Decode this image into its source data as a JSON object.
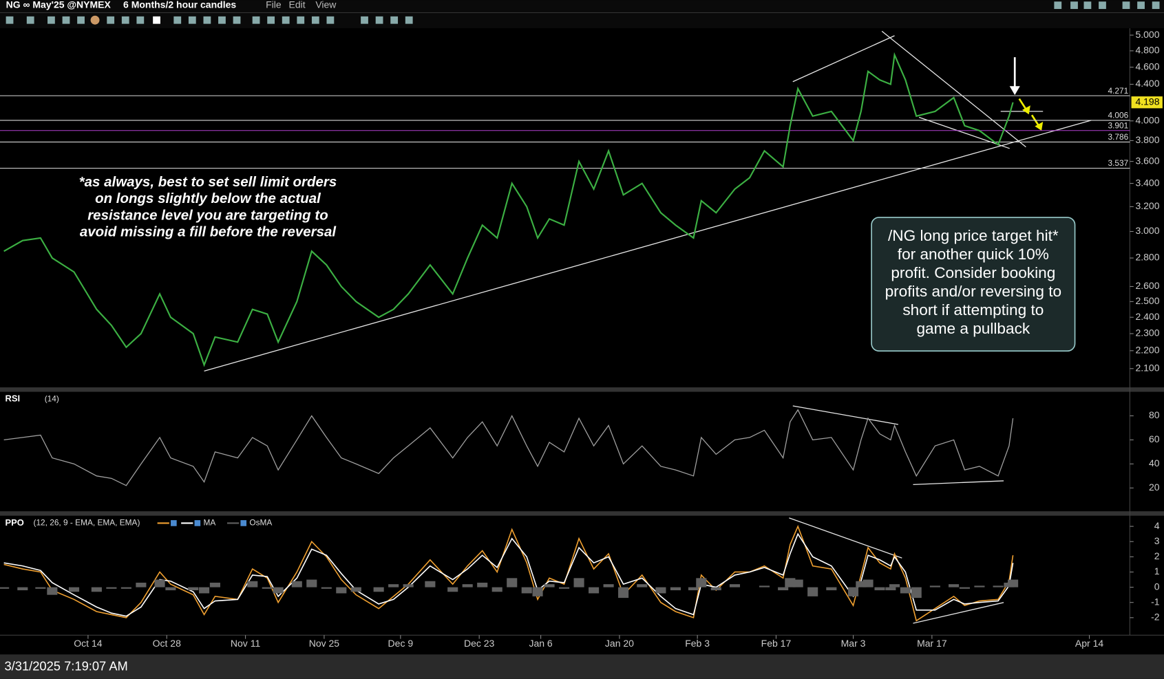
{
  "toolbar": {
    "symbol": "NG ∞ May'25 @NYMEX",
    "period": "6 Months/2 hour candles",
    "menu": [
      "File",
      "Edit",
      "View"
    ]
  },
  "chart_data": [
    {
      "type": "line",
      "color": "#3cb043",
      "log_scale": true,
      "note": [
        "*as always, best to set sell limit orders",
        "on longs slightly below the actual",
        "resistance level you are targeting to",
        "avoid missing a fill before the reversal"
      ],
      "callout": [
        "/NG long price target hit*",
        "for another quick 10%",
        "profit. Consider booking",
        "profits and/or reversing to",
        "short if attempting to",
        "game a pullback"
      ],
      "x": [
        0.5,
        2.9,
        5.2,
        6.7,
        9.5,
        12.4,
        14.3,
        16.2,
        18.1,
        20.5,
        21.9,
        24.8,
        26.2,
        27.6,
        30.5,
        32.4,
        34.3,
        35.7,
        38.1,
        40.0,
        41.9,
        43.8,
        45.7,
        48.6,
        50.5,
        52.4,
        55.2,
        58.1,
        60.0,
        61.9,
        63.8,
        65.7,
        67.6,
        69.0,
        70.5,
        72.4,
        74.3,
        76.2,
        78.1,
        80.0,
        82.4,
        84.8,
        86.7,
        89.0,
        90.0,
        91.9,
        94.3,
        96.2,
        98.1,
        100.5,
        101.4,
        102.4,
        104.3,
        106.7,
        109.5,
        110.5,
        111.4,
        112.9,
        114.3,
        114.8,
        116.2,
        117.6,
        120.0,
        122.4,
        123.8,
        125.7,
        128.1,
        129.5,
        130.0
      ],
      "values": [
        2.85,
        2.93,
        2.95,
        2.8,
        2.7,
        2.45,
        2.35,
        2.22,
        2.3,
        2.55,
        2.4,
        2.3,
        2.12,
        2.28,
        2.25,
        2.45,
        2.42,
        2.25,
        2.5,
        2.85,
        2.75,
        2.6,
        2.5,
        2.4,
        2.45,
        2.55,
        2.75,
        2.55,
        2.8,
        3.05,
        2.95,
        3.4,
        3.2,
        2.95,
        3.1,
        3.05,
        3.6,
        3.35,
        3.7,
        3.3,
        3.4,
        3.15,
        3.05,
        2.95,
        3.25,
        3.15,
        3.35,
        3.45,
        3.7,
        3.55,
        3.95,
        4.35,
        4.05,
        4.1,
        3.8,
        4.1,
        4.55,
        4.45,
        4.4,
        4.75,
        4.45,
        4.05,
        4.1,
        4.25,
        3.95,
        3.9,
        3.76,
        4.05,
        4.198
      ],
      "xlim": [
        0,
        145
      ],
      "ylim": [
        2.0,
        5.09
      ],
      "yticks": [
        {
          "value": 2.1,
          "label": "2.100"
        },
        {
          "value": 2.2,
          "label": "2.200"
        },
        {
          "value": 2.3,
          "label": "2.300"
        },
        {
          "value": 2.4,
          "label": "2.400"
        },
        {
          "value": 2.5,
          "label": "2.500"
        },
        {
          "value": 2.6,
          "label": "2.600"
        },
        {
          "value": 2.8,
          "label": "2.800"
        },
        {
          "value": 3.0,
          "label": "3.000"
        },
        {
          "value": 3.2,
          "label": "3.200"
        },
        {
          "value": 3.4,
          "label": "3.400"
        },
        {
          "value": 3.6,
          "label": "3.600"
        },
        {
          "value": 3.8,
          "label": "3.800"
        },
        {
          "value": 4.0,
          "label": "4.000"
        },
        {
          "value": 4.4,
          "label": "4.400"
        },
        {
          "value": 4.6,
          "label": "4.600"
        },
        {
          "value": 4.8,
          "label": "4.800"
        },
        {
          "value": 5.0,
          "label": "5.000"
        }
      ],
      "hlines": [
        4.271,
        4.006,
        3.901,
        3.786,
        3.537
      ],
      "hline_colors": [
        "#d8d8d8",
        "#d8d8d8",
        "#b040d0",
        "#d8d8d8",
        "#d8d8d8"
      ]
    },
    {
      "type": "line",
      "title": "RSI",
      "subtitle": "(14)",
      "color": "#a0a0a0",
      "x": [
        0.5,
        2.9,
        5.2,
        6.7,
        9.5,
        12.4,
        14.3,
        16.2,
        18.1,
        20.5,
        21.9,
        24.8,
        26.2,
        27.6,
        30.5,
        32.4,
        34.3,
        35.7,
        38.1,
        40.0,
        41.9,
        43.8,
        45.7,
        48.6,
        50.5,
        52.4,
        55.2,
        58.1,
        60.0,
        61.9,
        63.8,
        65.7,
        67.6,
        69.0,
        70.5,
        72.4,
        74.3,
        76.2,
        78.1,
        80.0,
        82.4,
        84.8,
        86.7,
        89.0,
        90.0,
        91.9,
        94.3,
        96.2,
        98.1,
        100.5,
        101.4,
        102.4,
        104.3,
        106.7,
        109.5,
        110.5,
        111.4,
        112.9,
        114.3,
        114.8,
        116.2,
        117.6,
        120.0,
        122.4,
        123.8,
        125.7,
        128.1,
        129.5,
        130.0
      ],
      "values": [
        60,
        62,
        64,
        45,
        40,
        30,
        28,
        22,
        40,
        62,
        45,
        38,
        25,
        50,
        45,
        62,
        55,
        35,
        60,
        80,
        62,
        45,
        40,
        32,
        45,
        55,
        70,
        45,
        62,
        75,
        55,
        80,
        55,
        38,
        58,
        50,
        78,
        55,
        72,
        40,
        55,
        38,
        35,
        30,
        62,
        48,
        60,
        62,
        68,
        45,
        75,
        85,
        60,
        62,
        35,
        60,
        78,
        65,
        60,
        72,
        50,
        30,
        55,
        60,
        35,
        38,
        30,
        55,
        78
      ],
      "xlim": [
        0,
        145
      ],
      "ylim": [
        0,
        100
      ],
      "yticks": [
        20,
        40,
        60,
        80
      ]
    },
    {
      "type": "line",
      "title": "PPO",
      "subtitle": "(12, 26, 9 - EMA, EMA, EMA)",
      "x": [
        0.5,
        2.9,
        5.2,
        6.7,
        9.5,
        12.4,
        14.3,
        16.2,
        18.1,
        20.5,
        21.9,
        24.8,
        26.2,
        27.6,
        30.5,
        32.4,
        34.3,
        35.7,
        38.1,
        40.0,
        41.9,
        43.8,
        45.7,
        48.6,
        50.5,
        52.4,
        55.2,
        58.1,
        60.0,
        61.9,
        63.8,
        65.7,
        67.6,
        69.0,
        70.5,
        72.4,
        74.3,
        76.2,
        78.1,
        80.0,
        82.4,
        84.8,
        86.7,
        89.0,
        90.0,
        91.9,
        94.3,
        96.2,
        98.1,
        100.5,
        101.4,
        102.4,
        104.3,
        106.7,
        109.5,
        110.5,
        111.4,
        112.9,
        114.3,
        114.8,
        116.2,
        117.6,
        120.0,
        122.4,
        123.8,
        125.7,
        128.1,
        129.5,
        130.0
      ],
      "series": [
        {
          "color": "#f0a030",
          "values": [
            1.5,
            1.2,
            1.0,
            -0.2,
            -0.8,
            -1.6,
            -1.8,
            -2.0,
            -1.0,
            1.0,
            0.2,
            -0.5,
            -1.8,
            -0.6,
            -0.8,
            1.2,
            0.6,
            -1.0,
            1.0,
            3.0,
            2.0,
            0.5,
            -0.5,
            -1.4,
            -0.6,
            0.2,
            1.8,
            0.2,
            1.4,
            2.4,
            1.0,
            3.8,
            1.6,
            -0.8,
            0.6,
            0.2,
            3.2,
            1.2,
            2.2,
            -0.5,
            0.8,
            -1.0,
            -1.6,
            -2.0,
            0.8,
            -0.2,
            1.0,
            1.0,
            1.4,
            0.6,
            2.8,
            4.0,
            1.4,
            1.2,
            -1.2,
            0.8,
            2.6,
            1.6,
            1.2,
            2.2,
            0.6,
            -2.2,
            -1.4,
            -0.6,
            -1.2,
            -0.9,
            -0.8,
            0.4,
            2.1
          ]
        },
        {
          "name": "MA",
          "color": "#ffffff",
          "values": [
            1.6,
            1.4,
            1.1,
            0.3,
            -0.5,
            -1.3,
            -1.7,
            -1.9,
            -1.3,
            0.5,
            0.4,
            -0.3,
            -1.4,
            -0.9,
            -0.8,
            0.8,
            0.7,
            -0.6,
            0.6,
            2.5,
            2.1,
            0.9,
            -0.2,
            -1.1,
            -0.8,
            0.0,
            1.4,
            0.5,
            1.2,
            2.1,
            1.3,
            3.2,
            2.0,
            -0.2,
            0.4,
            0.3,
            2.6,
            1.6,
            2.0,
            0.2,
            0.6,
            -0.6,
            -1.4,
            -1.8,
            0.2,
            0.0,
            0.8,
            1.0,
            1.3,
            0.8,
            2.2,
            3.5,
            2.0,
            1.4,
            -0.6,
            0.4,
            2.1,
            1.8,
            1.4,
            2.0,
            1.0,
            -1.5,
            -1.5,
            -0.8,
            -1.1,
            -1.0,
            -0.9,
            0.1,
            1.6
          ]
        },
        {
          "name": "OsMA",
          "color": "#606060",
          "style": "bar",
          "values": [
            -0.1,
            -0.2,
            -0.1,
            -0.5,
            -0.3,
            -0.3,
            -0.1,
            -0.1,
            0.3,
            0.5,
            -0.2,
            -0.2,
            -0.4,
            0.3,
            0,
            0.4,
            -0.1,
            -0.4,
            0.4,
            0.5,
            -0.1,
            -0.4,
            -0.3,
            -0.3,
            0.2,
            0.2,
            0.4,
            -0.3,
            0.2,
            0.3,
            -0.3,
            0.6,
            -0.4,
            -0.6,
            0.2,
            -0.1,
            0.6,
            -0.4,
            0.2,
            -0.7,
            0.2,
            -0.4,
            -0.2,
            -0.2,
            0.6,
            -0.2,
            0.2,
            0,
            0.1,
            -0.2,
            0.6,
            0.5,
            -0.6,
            -0.2,
            -0.6,
            0.4,
            0.5,
            -0.2,
            -0.2,
            0.2,
            -0.4,
            -0.7,
            0.1,
            0.2,
            -0.1,
            0.1,
            0.1,
            0.3,
            0.5
          ]
        }
      ],
      "xlim": [
        0,
        145
      ],
      "ylim": [
        -3.1,
        4.7
      ],
      "yticks": [
        -2,
        -1,
        0,
        1,
        2,
        3,
        4
      ],
      "xticks": [
        {
          "value": 11.3,
          "label": "Oct 14"
        },
        {
          "value": 21.4,
          "label": "Oct 28"
        },
        {
          "value": 31.5,
          "label": "Nov 11"
        },
        {
          "value": 41.6,
          "label": "Nov 25"
        },
        {
          "value": 51.4,
          "label": "Dec 9"
        },
        {
          "value": 61.5,
          "label": "Dec 23"
        },
        {
          "value": 69.4,
          "label": "Jan 6"
        },
        {
          "value": 79.5,
          "label": "Jan 20"
        },
        {
          "value": 89.5,
          "label": "Feb 3"
        },
        {
          "value": 99.6,
          "label": "Feb 17"
        },
        {
          "value": 109.5,
          "label": "Mar 3"
        },
        {
          "value": 119.6,
          "label": "Mar 17"
        },
        {
          "value": 139.8,
          "label": "Apr 14"
        }
      ]
    }
  ],
  "status_bar": {
    "timestamp": "3/31/2025 7:19:07 AM"
  }
}
